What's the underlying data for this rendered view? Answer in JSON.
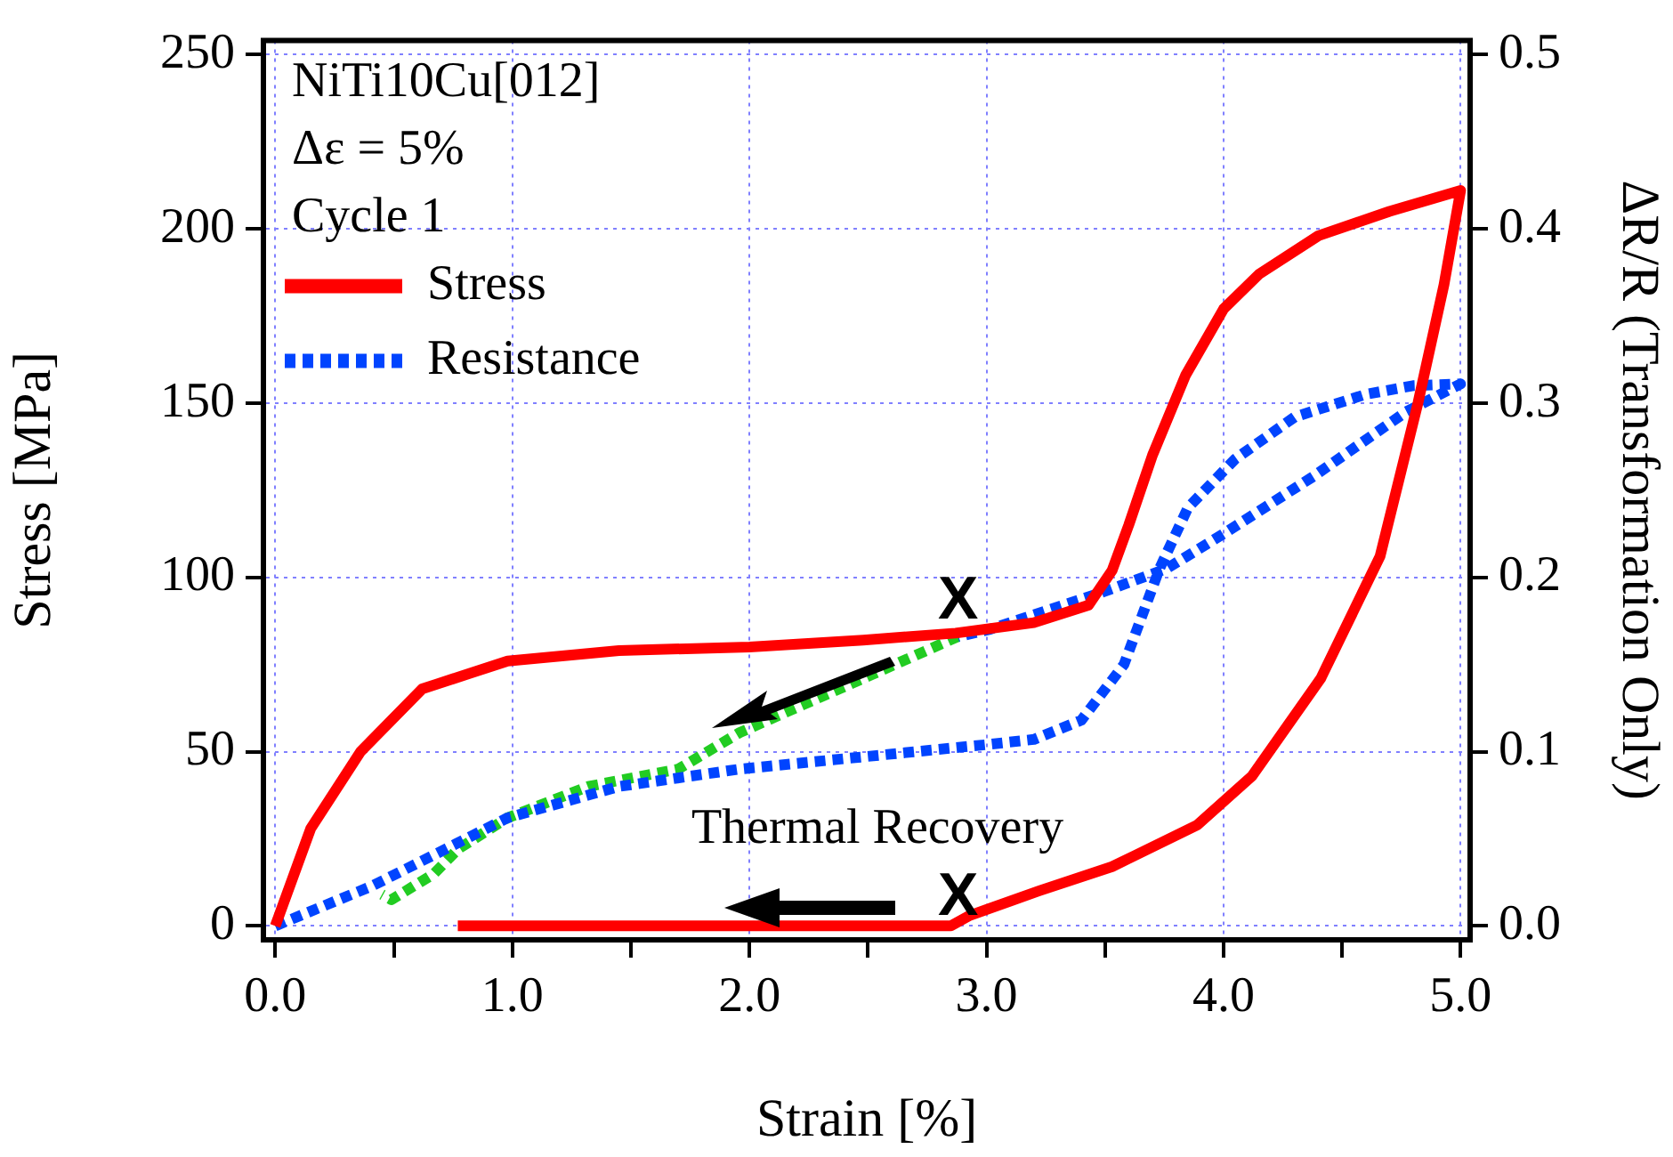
{
  "chart_data": {
    "type": "line",
    "xlabel": "Strain [%]",
    "ylabel": "Stress [MPa]",
    "y2label": "ΔR/R (Transformation Only)",
    "xlim": [
      -0.05,
      5.04
    ],
    "ylim": [
      -4,
      254
    ],
    "y2lim": [
      -0.008,
      0.508
    ],
    "xticks": [
      {
        "value": 0,
        "label": "0.0"
      },
      {
        "value": 0.5,
        "label": null
      },
      {
        "value": 1,
        "label": "1.0"
      },
      {
        "value": 1.5,
        "label": null
      },
      {
        "value": 2,
        "label": "2.0"
      },
      {
        "value": 2.5,
        "label": null
      },
      {
        "value": 3,
        "label": "3.0"
      },
      {
        "value": 3.5,
        "label": null
      },
      {
        "value": 4,
        "label": "4.0"
      },
      {
        "value": 4.5,
        "label": null
      },
      {
        "value": 5,
        "label": "5.0"
      }
    ],
    "yticks": [
      0,
      50,
      100,
      150,
      200,
      250
    ],
    "y2ticks": [
      {
        "value": 0,
        "label": "0.0"
      },
      0.1,
      0.2,
      0.3,
      0.4,
      0.5
    ],
    "grid": true,
    "legend": "top left",
    "marker": "none",
    "annotations": [
      "NiTi10Cu[012]",
      "Δε = 5%",
      "Cycle 1",
      "Thermal Recovery",
      {
        "text": "X",
        "x": 2.88,
        "y": 85
      },
      {
        "text": "X",
        "x": 2.88,
        "y": 0
      }
    ],
    "series": [
      {
        "name": "Stress",
        "color": "#ff0000",
        "line_style": "solid",
        "x": [
          0,
          0.15,
          0.36,
          0.62,
          0.98,
          1.45,
          2.0,
          2.48,
          2.87,
          3.2,
          3.43,
          3.53,
          3.6,
          3.7,
          3.84,
          4.0,
          4.15,
          4.4,
          4.7,
          5.0,
          4.93,
          4.82,
          4.66,
          4.41,
          4.12,
          3.89,
          3.53,
          3.22,
          2.93,
          2.85,
          0.77
        ],
        "values": [
          0,
          28,
          50,
          68,
          76,
          79,
          80,
          82,
          84,
          87,
          92,
          102,
          115,
          135,
          158,
          177,
          187,
          198,
          205,
          211,
          184,
          150,
          106,
          71,
          43,
          29,
          17,
          10,
          3,
          0,
          0
        ]
      },
      {
        "name": "Resistance",
        "color": "#0044ff",
        "line_style": "dotted",
        "axis": "y2",
        "x": [
          0,
          0.41,
          0.98,
          1.45,
          1.96,
          2.48,
          3.0,
          3.2,
          3.4,
          3.58,
          3.73,
          3.85,
          4.05,
          4.3,
          4.6,
          4.8,
          5.0,
          4.77,
          4.38,
          4.0,
          3.76,
          3.48,
          3.01,
          2.88
        ],
        "values": [
          0,
          0.023,
          0.062,
          0.08,
          0.09,
          0.097,
          0.104,
          0.107,
          0.118,
          0.15,
          0.205,
          0.24,
          0.268,
          0.292,
          0.305,
          0.31,
          0.311,
          0.295,
          0.258,
          0.225,
          0.205,
          0.191,
          0.17,
          0.166
        ]
      },
      {
        "color": "#22cc22",
        "line_style": "dotted",
        "axis": "y2",
        "x": [
          2.88,
          2.48,
          1.96,
          1.7,
          1.32,
          0.98,
          0.77,
          0.67,
          0.49,
          0.45
        ],
        "values": [
          0.166,
          0.142,
          0.111,
          0.09,
          0.08,
          0.062,
          0.044,
          0.03,
          0.015,
          0.018
        ]
      }
    ]
  }
}
